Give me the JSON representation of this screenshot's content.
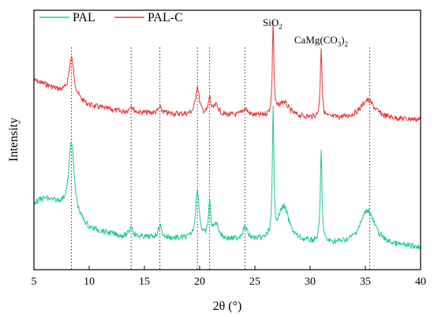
{
  "chart_data": {
    "type": "line",
    "xlabel": "2θ (°)",
    "ylabel": "Intensity",
    "xlim": [
      5,
      40
    ],
    "xticks": [
      5,
      10,
      15,
      20,
      25,
      30,
      35,
      40
    ],
    "tick_labels": [
      "5",
      "10",
      "15",
      "20",
      "25",
      "30",
      "35",
      "40"
    ],
    "y_ticks_shown": false,
    "legend_position": "top-left",
    "reference_lines_x": [
      8.4,
      13.8,
      16.4,
      19.8,
      20.9,
      24.1,
      35.4
    ],
    "annotations": [
      {
        "x": 26.6,
        "text": "SiO",
        "sub": "2",
        "after": ""
      },
      {
        "x": 31.0,
        "text": "CaMg(CO",
        "sub": "3",
        "after": ")",
        "sub2": "2"
      }
    ],
    "series": [
      {
        "name": "PAL-C",
        "color": "#e8343a",
        "peaks": [
          {
            "x": 8.4,
            "h": 0.42,
            "w": 0.28
          },
          {
            "x": 13.8,
            "h": 0.07,
            "w": 0.2
          },
          {
            "x": 16.4,
            "h": 0.06,
            "w": 0.2
          },
          {
            "x": 19.8,
            "h": 0.3,
            "w": 0.2
          },
          {
            "x": 20.9,
            "h": 0.18,
            "w": 0.12
          },
          {
            "x": 21.5,
            "h": 0.1,
            "w": 0.3
          },
          {
            "x": 24.1,
            "h": 0.08,
            "w": 0.3
          },
          {
            "x": 26.65,
            "h": 1.0,
            "w": 0.08
          },
          {
            "x": 27.6,
            "h": 0.16,
            "w": 0.6
          },
          {
            "x": 31.0,
            "h": 0.76,
            "w": 0.09
          },
          {
            "x": 35.2,
            "h": 0.2,
            "w": 0.8
          }
        ]
      },
      {
        "name": "PAL",
        "color": "#1fc98a",
        "peaks": [
          {
            "x": 8.4,
            "h": 0.58,
            "w": 0.28
          },
          {
            "x": 13.8,
            "h": 0.08,
            "w": 0.2
          },
          {
            "x": 16.4,
            "h": 0.1,
            "w": 0.18
          },
          {
            "x": 19.8,
            "h": 0.38,
            "w": 0.2
          },
          {
            "x": 20.9,
            "h": 0.28,
            "w": 0.12
          },
          {
            "x": 21.5,
            "h": 0.12,
            "w": 0.3
          },
          {
            "x": 24.1,
            "h": 0.1,
            "w": 0.3
          },
          {
            "x": 26.65,
            "h": 0.98,
            "w": 0.08
          },
          {
            "x": 27.6,
            "h": 0.28,
            "w": 0.6
          },
          {
            "x": 31.0,
            "h": 0.72,
            "w": 0.09
          },
          {
            "x": 35.2,
            "h": 0.28,
            "w": 0.8
          }
        ]
      }
    ]
  }
}
